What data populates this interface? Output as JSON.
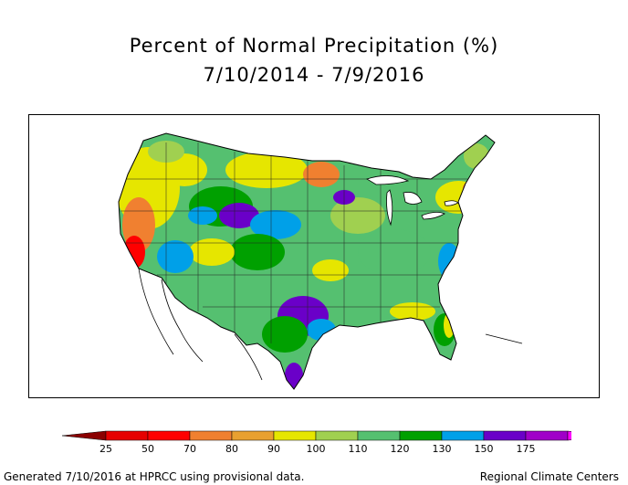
{
  "header": {
    "title": "Percent of Normal Precipitation (%)",
    "subtitle": "7/10/2014 - 7/9/2016"
  },
  "legend": {
    "ticks": [
      "25",
      "50",
      "70",
      "80",
      "90",
      "100",
      "110",
      "120",
      "130",
      "150",
      "175"
    ],
    "colors": [
      "#8b0000",
      "#e60000",
      "#ff0000",
      "#f08030",
      "#e8a030",
      "#e6e600",
      "#a0d050",
      "#55c070",
      "#00a000",
      "#00a0e8",
      "#6a00c8",
      "#a000c8",
      "#ff00ff"
    ]
  },
  "footer": {
    "left": "Generated 7/10/2016 at HPRCC using provisional data.",
    "right": "Regional Climate Centers"
  }
}
